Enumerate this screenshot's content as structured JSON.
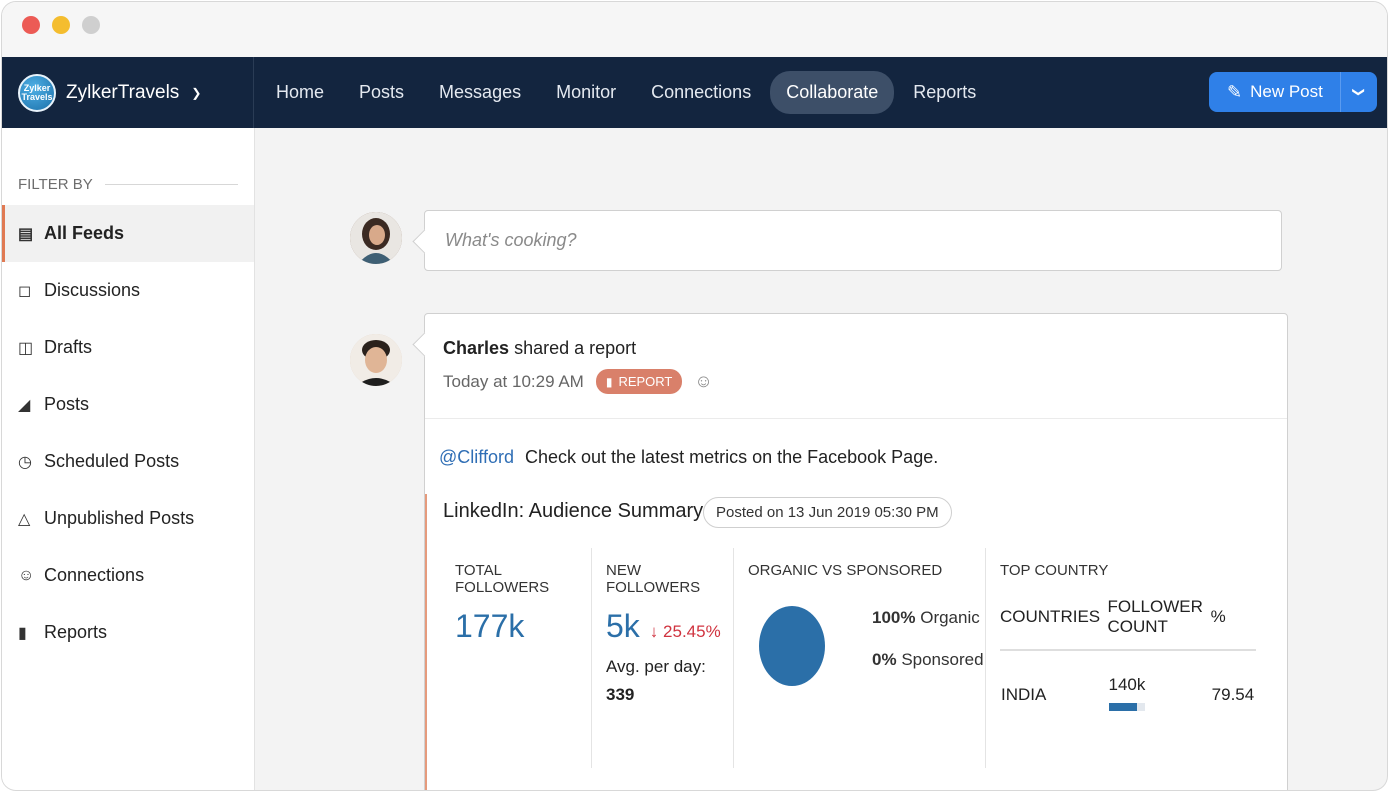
{
  "brand": {
    "name": "ZylkerTravels",
    "logo_text": "Zylker Travels"
  },
  "nav": {
    "items": [
      "Home",
      "Posts",
      "Messages",
      "Monitor",
      "Connections",
      "Collaborate",
      "Reports"
    ],
    "active": "Collaborate",
    "new_post_label": "New Post"
  },
  "sidebar": {
    "filter_label": "FILTER BY",
    "items": [
      {
        "label": "All Feeds",
        "icon": "feed-icon"
      },
      {
        "label": "Discussions",
        "icon": "discussion-icon"
      },
      {
        "label": "Drafts",
        "icon": "drafts-icon"
      },
      {
        "label": "Posts",
        "icon": "megaphone-icon"
      },
      {
        "label": "Scheduled Posts",
        "icon": "clock-icon"
      },
      {
        "label": "Unpublished Posts",
        "icon": "warning-icon"
      },
      {
        "label": "Connections",
        "icon": "users-icon"
      },
      {
        "label": "Reports",
        "icon": "bar-chart-icon"
      }
    ],
    "active_index": 0
  },
  "composer": {
    "placeholder": "What's cooking?"
  },
  "post": {
    "author": "Charles",
    "action": "shared a report",
    "time": "Today at 10:29 AM",
    "badge": "REPORT",
    "mention": "@Clifford",
    "message": "Check out the latest metrics on the Facebook Page.",
    "report": {
      "title": "LinkedIn: Audience Summary",
      "posted": "Posted on 13 Jun 2019 05:30 PM",
      "total_followers": {
        "label": "TOTAL FOLLOWERS",
        "value": "177k"
      },
      "new_followers": {
        "label": "NEW FOLLOWERS",
        "value": "5k",
        "change": "25.45%",
        "avg_label": "Avg. per day:",
        "avg_value": "339"
      },
      "organic_vs_sponsored": {
        "label": "ORGANIC VS SPONSORED",
        "organic_pct": "100%",
        "organic_label": "Organic",
        "sponsored_pct": "0%",
        "sponsored_label": "Sponsored"
      },
      "top_country": {
        "label": "TOP COUNTRY",
        "col_countries": "COUNTRIES",
        "col_follower_line1": "FOLLOWER",
        "col_follower_line2": "COUNT",
        "col_pct": "%",
        "rows": [
          {
            "country": "INDIA",
            "count": "140k",
            "pct": "79.54",
            "bar_fraction": 0.8
          }
        ]
      }
    }
  },
  "colors": {
    "nav_bg": "#13253f",
    "accent": "#2f80e8",
    "report_badge": "#d9806a",
    "metric_blue": "#2b6fa8"
  }
}
